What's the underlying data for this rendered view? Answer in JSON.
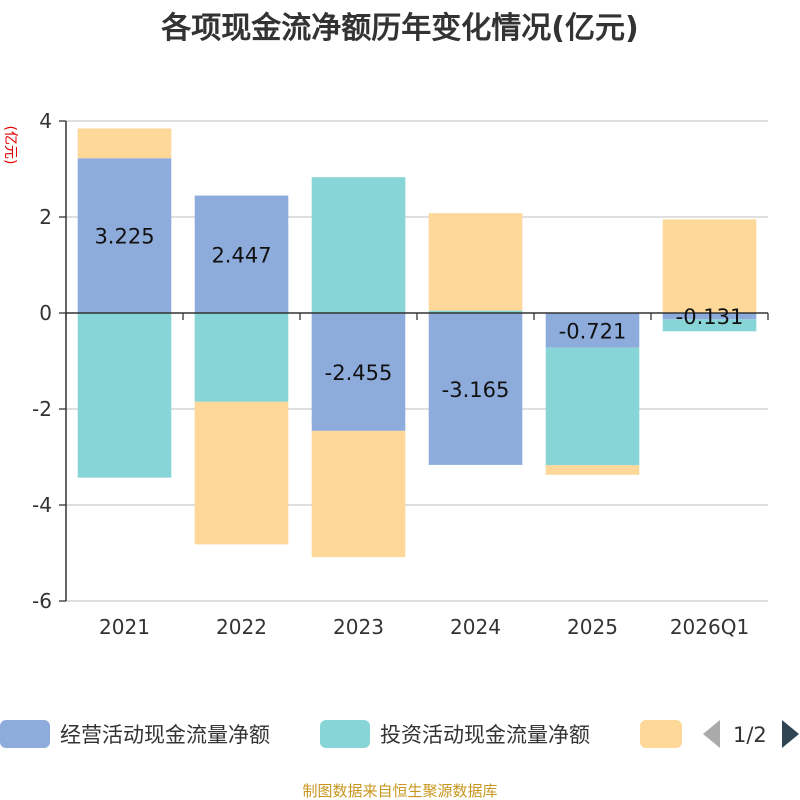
{
  "chart_data": {
    "type": "bar",
    "stacked": true,
    "title": "各项现金流净额历年变化情况(亿元)",
    "ylabel": "(亿元)",
    "xlabel": "",
    "ylim": [
      -6,
      4
    ],
    "yticks": [
      4,
      2,
      0,
      -2,
      -4,
      -6
    ],
    "categories": [
      "2021",
      "2022",
      "2023",
      "2024",
      "2025",
      "2026Q1"
    ],
    "series": [
      {
        "name": "经营活动现金流量净额",
        "color": "#8eacdb",
        "values": [
          3.225,
          2.447,
          -2.455,
          -3.165,
          -0.721,
          -0.131
        ],
        "show_labels": true
      },
      {
        "name": "投资活动现金流量净额",
        "color": "#88d5d8",
        "values": [
          -3.43,
          -1.85,
          2.83,
          0.05,
          -2.45,
          -0.25
        ],
        "show_labels": false
      },
      {
        "name": "",
        "color": "#fed899",
        "values": [
          0.62,
          -2.97,
          -2.63,
          2.03,
          -0.2,
          1.95
        ],
        "show_labels": false
      }
    ],
    "legend": {
      "position": "bottom",
      "page": "1/2"
    },
    "grid": true,
    "source": "制图数据来自恒生聚源数据库"
  }
}
